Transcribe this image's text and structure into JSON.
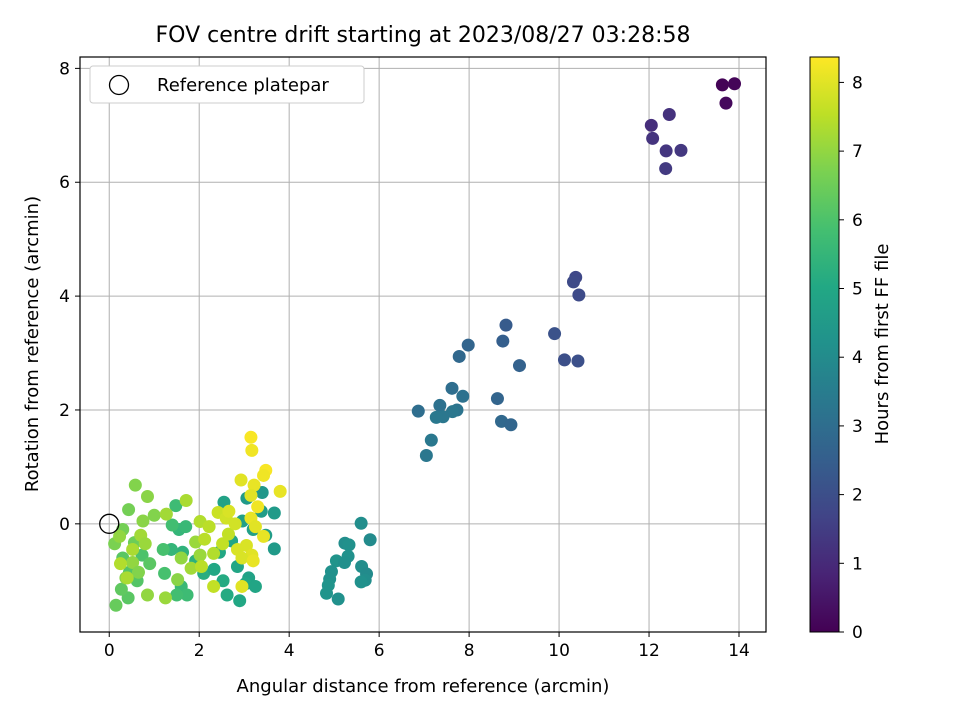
{
  "chart_data": {
    "type": "scatter",
    "title": "FOV centre drift starting at 2023/08/27 03:28:58",
    "xlabel": "Angular distance from reference (arcmin)",
    "ylabel": "Rotation from reference (arcmin)",
    "xlim": [
      -0.65,
      14.6
    ],
    "ylim": [
      -1.9,
      8.2
    ],
    "xticks": [
      0,
      2,
      4,
      6,
      8,
      10,
      12,
      14
    ],
    "yticks": [
      0,
      2,
      4,
      6,
      8
    ],
    "grid": true,
    "legend": {
      "position": "top-left",
      "entries": [
        "Reference platepar"
      ]
    },
    "reference_point": {
      "x": 0,
      "y": 0
    },
    "colorbar": {
      "label": "Hours from first FF file",
      "range": [
        0,
        8.37
      ],
      "ticks": [
        0,
        1,
        2,
        3,
        4,
        5,
        6,
        7,
        8
      ],
      "colormap": "viridis"
    },
    "points": [
      [
        13.63,
        7.71,
        0.05
      ],
      [
        13.9,
        7.73,
        0.1
      ],
      [
        13.71,
        7.39,
        0.2
      ],
      [
        12.05,
        7.0,
        1.1
      ],
      [
        12.45,
        7.19,
        1.2
      ],
      [
        12.08,
        6.77,
        1.25
      ],
      [
        12.38,
        6.55,
        1.3
      ],
      [
        12.71,
        6.56,
        1.35
      ],
      [
        12.37,
        6.24,
        1.4
      ],
      [
        10.37,
        4.33,
        1.8
      ],
      [
        10.32,
        4.25,
        1.85
      ],
      [
        10.44,
        4.02,
        1.9
      ],
      [
        9.9,
        3.34,
        2.1
      ],
      [
        10.12,
        2.88,
        2.0
      ],
      [
        10.42,
        2.86,
        2.05
      ],
      [
        8.82,
        3.49,
        2.4
      ],
      [
        8.75,
        3.21,
        2.5
      ],
      [
        7.98,
        3.14,
        2.7
      ],
      [
        7.78,
        2.94,
        2.8
      ],
      [
        9.12,
        2.78,
        2.6
      ],
      [
        8.63,
        2.2,
        2.7
      ],
      [
        8.72,
        1.8,
        2.8
      ],
      [
        8.93,
        1.74,
        2.75
      ],
      [
        6.87,
        1.98,
        3.0
      ],
      [
        7.35,
        2.08,
        3.1
      ],
      [
        7.62,
        2.38,
        3.0
      ],
      [
        7.86,
        2.24,
        3.1
      ],
      [
        7.73,
        2.0,
        3.2
      ],
      [
        7.63,
        1.97,
        3.3
      ],
      [
        7.42,
        1.88,
        3.3
      ],
      [
        7.27,
        1.87,
        3.35
      ],
      [
        7.16,
        1.47,
        3.35
      ],
      [
        7.05,
        1.2,
        3.3
      ],
      [
        5.6,
        0.01,
        4.1
      ],
      [
        5.24,
        -0.34,
        4.1
      ],
      [
        5.33,
        -0.37,
        4.2
      ],
      [
        5.8,
        -0.28,
        4.0
      ],
      [
        5.31,
        -0.57,
        4.2
      ],
      [
        5.05,
        -0.65,
        4.3
      ],
      [
        5.23,
        -0.68,
        4.15
      ],
      [
        5.61,
        -0.75,
        4.1
      ],
      [
        4.94,
        -0.84,
        4.2
      ],
      [
        5.72,
        -0.88,
        4.0
      ],
      [
        4.9,
        -0.97,
        4.2
      ],
      [
        4.87,
        -1.08,
        4.3
      ],
      [
        5.69,
        -0.99,
        4.1
      ],
      [
        5.6,
        -1.02,
        4.2
      ],
      [
        4.83,
        -1.22,
        4.3
      ],
      [
        5.09,
        -1.32,
        4.2
      ],
      [
        3.4,
        0.55,
        4.4
      ],
      [
        3.67,
        0.19,
        4.5
      ],
      [
        3.38,
        0.22,
        4.6
      ],
      [
        3.67,
        -0.44,
        4.5
      ],
      [
        3.48,
        -0.2,
        4.6
      ],
      [
        3.2,
        -0.1,
        4.7
      ],
      [
        3.06,
        0.45,
        4.5
      ],
      [
        2.55,
        0.38,
        4.8
      ],
      [
        2.96,
        0.05,
        4.7
      ],
      [
        2.72,
        -0.3,
        4.9
      ],
      [
        2.45,
        -0.5,
        5.0
      ],
      [
        2.85,
        -0.75,
        4.9
      ],
      [
        3.1,
        -0.95,
        4.8
      ],
      [
        2.53,
        -1.0,
        5.1
      ],
      [
        2.1,
        -0.87,
        5.2
      ],
      [
        2.33,
        -0.8,
        5.0
      ],
      [
        3.03,
        -1.05,
        5.0
      ],
      [
        3.25,
        -1.1,
        4.9
      ],
      [
        2.62,
        -1.25,
        5.1
      ],
      [
        2.9,
        -1.35,
        5.0
      ],
      [
        1.92,
        -0.65,
        5.3
      ],
      [
        1.63,
        -0.5,
        5.4
      ],
      [
        1.38,
        -0.45,
        5.5
      ],
      [
        1.55,
        -0.1,
        5.5
      ],
      [
        1.7,
        -0.05,
        5.6
      ],
      [
        1.48,
        0.32,
        5.7
      ],
      [
        1.4,
        -0.02,
        5.8
      ],
      [
        1.2,
        -0.45,
        5.9
      ],
      [
        1.6,
        -1.1,
        5.6
      ],
      [
        1.73,
        -1.25,
        5.7
      ],
      [
        1.5,
        -1.25,
        5.8
      ],
      [
        1.23,
        -0.87,
        5.9
      ],
      [
        0.73,
        -0.55,
        6.0
      ],
      [
        0.45,
        -0.85,
        6.1
      ],
      [
        0.3,
        -0.6,
        6.2
      ],
      [
        0.42,
        -1.3,
        6.2
      ],
      [
        0.27,
        -1.15,
        6.3
      ],
      [
        0.15,
        -1.43,
        6.4
      ],
      [
        0.62,
        -1.0,
        6.1
      ],
      [
        0.9,
        -0.7,
        6.2
      ],
      [
        0.56,
        -0.33,
        6.5
      ],
      [
        0.3,
        -0.1,
        6.6
      ],
      [
        0.43,
        0.25,
        6.6
      ],
      [
        0.58,
        0.68,
        6.8
      ],
      [
        0.85,
        0.48,
        6.9
      ],
      [
        1.0,
        0.15,
        6.8
      ],
      [
        0.75,
        0.05,
        6.9
      ],
      [
        0.12,
        -0.35,
        6.7
      ],
      [
        0.23,
        -0.22,
        7.0
      ],
      [
        0.37,
        -0.95,
        6.9
      ],
      [
        0.52,
        -0.68,
        7.0
      ],
      [
        0.65,
        -0.85,
        6.8
      ],
      [
        0.85,
        -1.25,
        7.0
      ],
      [
        1.25,
        -1.3,
        7.1
      ],
      [
        1.52,
        -0.98,
        6.9
      ],
      [
        1.6,
        -0.6,
        7.0
      ],
      [
        1.92,
        -0.32,
        7.1
      ],
      [
        1.82,
        -0.78,
        7.2
      ],
      [
        2.02,
        -0.55,
        7.1
      ],
      [
        1.71,
        0.41,
        7.3
      ],
      [
        1.27,
        0.17,
        7.2
      ],
      [
        2.02,
        0.04,
        7.4
      ],
      [
        2.22,
        -0.05,
        7.5
      ],
      [
        2.32,
        -0.52,
        7.4
      ],
      [
        2.52,
        -0.35,
        7.6
      ],
      [
        2.12,
        -0.27,
        7.5
      ],
      [
        2.65,
        -0.18,
        7.6
      ],
      [
        2.42,
        0.2,
        7.7
      ],
      [
        2.6,
        0.1,
        7.8
      ],
      [
        2.32,
        -1.1,
        7.6
      ],
      [
        2.05,
        -0.75,
        7.5
      ],
      [
        0.52,
        -0.45,
        7.3
      ],
      [
        0.7,
        -0.2,
        7.2
      ],
      [
        0.8,
        -0.35,
        7.1
      ],
      [
        0.25,
        -0.7,
        7.4
      ],
      [
        0.4,
        -0.95,
        7.3
      ],
      [
        2.93,
        0.77,
        8.0
      ],
      [
        3.15,
        1.52,
        8.3
      ],
      [
        3.17,
        1.29,
        8.2
      ],
      [
        3.22,
        0.68,
        8.1
      ],
      [
        3.48,
        0.94,
        8.3
      ],
      [
        3.43,
        0.85,
        8.2
      ],
      [
        3.8,
        0.57,
        8.1
      ],
      [
        3.15,
        0.5,
        8.0
      ],
      [
        3.3,
        0.3,
        8.2
      ],
      [
        3.15,
        0.1,
        8.1
      ],
      [
        3.25,
        -0.05,
        8.0
      ],
      [
        3.43,
        -0.22,
        8.1
      ],
      [
        3.05,
        -0.38,
        7.9
      ],
      [
        3.17,
        -0.55,
        8.0
      ],
      [
        2.85,
        -0.45,
        7.9
      ],
      [
        2.95,
        -0.6,
        7.9
      ],
      [
        2.8,
        0.0,
        7.8
      ],
      [
        2.66,
        0.22,
        7.9
      ],
      [
        3.2,
        -0.65,
        8.1
      ],
      [
        2.95,
        -1.1,
        8.0
      ]
    ]
  }
}
